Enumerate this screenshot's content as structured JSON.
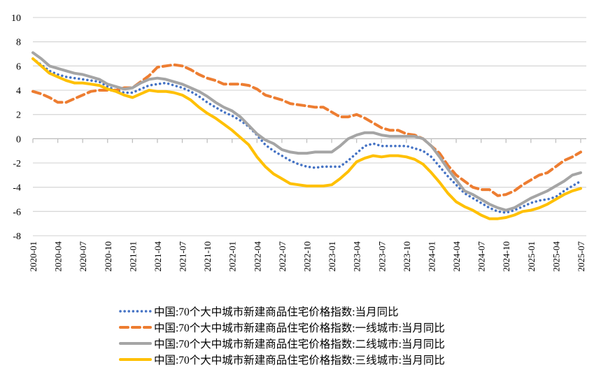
{
  "chart_data": {
    "type": "line",
    "title": "",
    "xlabel": "",
    "ylabel": "",
    "ylim": [
      -8,
      10
    ],
    "yticks": [
      -8,
      -6,
      -4,
      -2,
      0,
      2,
      4,
      6,
      8,
      10
    ],
    "grid": true,
    "legend_position": "bottom",
    "x": [
      "2020-01",
      "2020-02",
      "2020-03",
      "2020-04",
      "2020-05",
      "2020-06",
      "2020-07",
      "2020-08",
      "2020-09",
      "2020-10",
      "2020-11",
      "2020-12",
      "2021-01",
      "2021-02",
      "2021-03",
      "2021-04",
      "2021-05",
      "2021-06",
      "2021-07",
      "2021-08",
      "2021-09",
      "2021-10",
      "2021-11",
      "2021-12",
      "2022-01",
      "2022-02",
      "2022-03",
      "2022-04",
      "2022-05",
      "2022-06",
      "2022-07",
      "2022-08",
      "2022-09",
      "2022-10",
      "2022-11",
      "2022-12",
      "2023-01",
      "2023-02",
      "2023-03",
      "2023-04",
      "2023-05",
      "2023-06",
      "2023-07",
      "2023-08",
      "2023-09",
      "2023-10",
      "2023-11",
      "2023-12",
      "2024-01",
      "2024-02",
      "2024-03",
      "2024-04",
      "2024-05",
      "2024-06",
      "2024-07",
      "2024-08",
      "2024-09",
      "2024-10",
      "2024-11",
      "2024-12",
      "2025-01",
      "2025-02",
      "2025-03",
      "2025-04",
      "2025-05",
      "2025-06",
      "2025-07"
    ],
    "xtick_labels": [
      "2020-01",
      "2020-04",
      "2020-07",
      "2020-10",
      "2021-01",
      "2021-04",
      "2021-07",
      "2021-10",
      "2022-01",
      "2022-04",
      "2022-07",
      "2022-10",
      "2023-01",
      "2023-04",
      "2023-07",
      "2023-10",
      "2024-01",
      "2024-04",
      "2024-07",
      "2024-10",
      "2025-01",
      "2025-04",
      "2025-07"
    ],
    "series": [
      {
        "name": "中国:70个大中城市新建商品住宅价格指数:当月同比",
        "color": "#4472C4",
        "style": "dotted",
        "values": [
          6.6,
          6.1,
          5.6,
          5.3,
          5.1,
          5.0,
          4.9,
          4.8,
          4.7,
          4.3,
          4.0,
          3.8,
          3.8,
          4.1,
          4.4,
          4.5,
          4.6,
          4.4,
          4.2,
          3.9,
          3.5,
          3.0,
          2.6,
          2.2,
          1.9,
          1.5,
          1.0,
          0.3,
          -0.5,
          -1.0,
          -1.4,
          -1.8,
          -2.1,
          -2.3,
          -2.4,
          -2.3,
          -2.3,
          -2.3,
          -1.8,
          -1.2,
          -0.6,
          -0.4,
          -0.6,
          -0.6,
          -0.6,
          -0.6,
          -0.8,
          -1.0,
          -1.5,
          -2.3,
          -3.1,
          -3.8,
          -4.5,
          -4.9,
          -5.3,
          -5.7,
          -6.0,
          -6.1,
          -5.9,
          -5.6,
          -5.3,
          -5.1,
          -5.0,
          -4.8,
          -4.3,
          -3.9,
          -3.5
        ]
      },
      {
        "name": "中国:70个大中城市新建商品住宅价格指数:一线城市:当月同比",
        "color": "#ED7D31",
        "style": "dashed",
        "values": [
          3.9,
          3.7,
          3.4,
          3.0,
          3.0,
          3.3,
          3.6,
          3.9,
          4.0,
          4.0,
          4.0,
          4.2,
          4.2,
          4.7,
          5.2,
          5.9,
          6.0,
          6.1,
          6.0,
          5.7,
          5.3,
          5.0,
          4.8,
          4.5,
          4.5,
          4.5,
          4.4,
          4.1,
          3.6,
          3.4,
          3.2,
          2.9,
          2.8,
          2.7,
          2.6,
          2.6,
          2.2,
          1.8,
          1.8,
          2.0,
          1.7,
          1.3,
          0.9,
          0.7,
          0.7,
          0.4,
          0.3,
          0.0,
          -0.6,
          -1.2,
          -2.2,
          -3.0,
          -3.5,
          -4.0,
          -4.2,
          -4.2,
          -4.7,
          -4.6,
          -4.3,
          -3.8,
          -3.4,
          -3.0,
          -2.8,
          -2.3,
          -1.8,
          -1.5,
          -1.1
        ]
      },
      {
        "name": "中国:70个大中城市新建商品住宅价格指数:二线城市:当月同比",
        "color": "#A5A5A5",
        "style": "solid",
        "values": [
          7.1,
          6.6,
          6.0,
          5.8,
          5.6,
          5.4,
          5.3,
          5.1,
          4.9,
          4.5,
          4.3,
          4.1,
          4.2,
          4.6,
          4.9,
          5.0,
          4.9,
          4.7,
          4.5,
          4.2,
          3.9,
          3.5,
          3.0,
          2.6,
          2.3,
          1.8,
          1.1,
          0.4,
          -0.1,
          -0.4,
          -0.9,
          -1.1,
          -1.2,
          -1.2,
          -1.1,
          -1.1,
          -1.1,
          -0.6,
          0.0,
          0.3,
          0.5,
          0.5,
          0.3,
          0.2,
          0.2,
          0.2,
          0.2,
          0.0,
          -0.6,
          -1.5,
          -2.5,
          -3.4,
          -4.3,
          -4.6,
          -5.0,
          -5.4,
          -5.7,
          -5.9,
          -5.7,
          -5.3,
          -4.9,
          -4.6,
          -4.3,
          -3.9,
          -3.5,
          -3.0,
          -2.8
        ]
      },
      {
        "name": "中国:70个大中城市新建商品住宅价格指数:三线城市:当月同比",
        "color": "#FFC000",
        "style": "solid",
        "values": [
          6.6,
          6.0,
          5.4,
          5.1,
          4.8,
          4.6,
          4.6,
          4.5,
          4.4,
          4.1,
          3.9,
          3.6,
          3.4,
          3.7,
          4.0,
          3.9,
          3.9,
          3.8,
          3.6,
          3.2,
          2.6,
          2.1,
          1.7,
          1.2,
          0.7,
          0.1,
          -0.5,
          -1.5,
          -2.3,
          -2.9,
          -3.3,
          -3.7,
          -3.8,
          -3.9,
          -3.9,
          -3.9,
          -3.8,
          -3.3,
          -2.7,
          -1.9,
          -1.6,
          -1.4,
          -1.5,
          -1.4,
          -1.4,
          -1.5,
          -1.7,
          -2.1,
          -2.8,
          -3.6,
          -4.5,
          -5.2,
          -5.6,
          -5.9,
          -6.3,
          -6.6,
          -6.6,
          -6.5,
          -6.3,
          -6.0,
          -5.9,
          -5.7,
          -5.4,
          -5.0,
          -4.6,
          -4.3,
          -4.1
        ]
      }
    ]
  }
}
